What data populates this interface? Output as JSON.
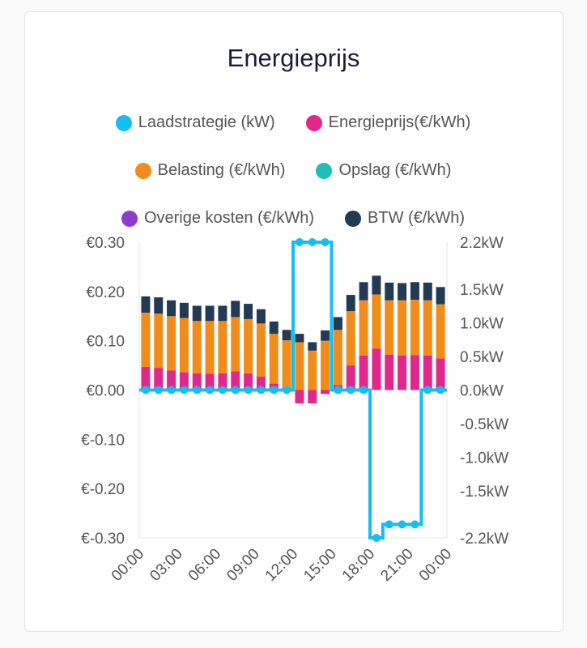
{
  "card": {
    "title": "Energieprijs"
  },
  "colors": {
    "laad": "#15bdf0",
    "energie": "#e0288c",
    "belasting": "#f08c1c",
    "opslag": "#1fbfb6",
    "overige": "#8a3dd0",
    "btw": "#233a55"
  },
  "legend": [
    {
      "key": "laad",
      "label": "Laadstrategie (kW)"
    },
    {
      "key": "energie",
      "label": "Energieprijs(€/kWh)"
    },
    {
      "key": "belasting",
      "label": "Belasting (€/kWh)"
    },
    {
      "key": "opslag",
      "label": "Opslag (€/kWh)"
    },
    {
      "key": "overige",
      "label": "Overige kosten (€/kWh)"
    },
    {
      "key": "btw",
      "label": "BTW (€/kWh)"
    }
  ],
  "chart_data": {
    "type": "bar",
    "title": "Energieprijs",
    "x": [
      0,
      1,
      2,
      3,
      4,
      5,
      6,
      7,
      8,
      9,
      10,
      11,
      12,
      13,
      14,
      15,
      16,
      17,
      18,
      19,
      20,
      21,
      22,
      23
    ],
    "x_tick_labels": [
      "00:00",
      "03:00",
      "06:00",
      "09:00",
      "12:00",
      "15:00",
      "18:00",
      "21:00",
      "00:00"
    ],
    "y_left": {
      "label": "€/kWh",
      "range": [
        -0.3,
        0.3
      ],
      "ticks": [
        "€0.30",
        "€0.20",
        "€0.10",
        "€0.00",
        "€-0.10",
        "€-0.20",
        "€-0.30"
      ]
    },
    "y_right": {
      "label": "kW",
      "range": [
        -2.2,
        2.2
      ],
      "ticks": [
        "2.2kW",
        "1.5kW",
        "1.0kW",
        "0.5kW",
        "0.0kW",
        "-0.5kW",
        "-1.0kW",
        "-1.5kW",
        "-2.2kW"
      ]
    },
    "series": [
      {
        "name": "Energieprijs(€/kWh)",
        "values": [
          0.047,
          0.045,
          0.04,
          0.036,
          0.034,
          0.033,
          0.034,
          0.038,
          0.034,
          0.027,
          0.013,
          0.004,
          -0.027,
          -0.027,
          -0.008,
          0.01,
          0.05,
          0.07,
          0.084,
          0.072,
          0.07,
          0.071,
          0.07,
          0.064
        ]
      },
      {
        "name": "Belasting (€/kWh)",
        "values": [
          0.11,
          0.11,
          0.11,
          0.11,
          0.106,
          0.107,
          0.106,
          0.11,
          0.11,
          0.108,
          0.101,
          0.097,
          0.097,
          0.08,
          0.1,
          0.112,
          0.11,
          0.112,
          0.11,
          0.11,
          0.112,
          0.112,
          0.112,
          0.11
        ]
      },
      {
        "name": "Opslag (€/kWh)",
        "values": [
          0,
          0,
          0,
          0,
          0,
          0,
          0,
          0,
          0,
          0,
          0,
          0,
          0,
          0,
          0,
          0,
          0,
          0,
          0,
          0,
          0,
          0,
          0,
          0
        ]
      },
      {
        "name": "Overige kosten (€/kWh)",
        "values": [
          0,
          0,
          0,
          0,
          0,
          0,
          0,
          0,
          0,
          0,
          0,
          0,
          0,
          0,
          0,
          0,
          0,
          0,
          0,
          0,
          0,
          0,
          0,
          0
        ]
      },
      {
        "name": "BTW (€/kWh)",
        "values": [
          0.033,
          0.033,
          0.032,
          0.031,
          0.031,
          0.031,
          0.031,
          0.033,
          0.031,
          0.029,
          0.025,
          0.021,
          0.017,
          0.017,
          0.021,
          0.026,
          0.033,
          0.037,
          0.038,
          0.036,
          0.035,
          0.036,
          0.036,
          0.035
        ]
      },
      {
        "name": "Laadstrategie (kW)",
        "axis": "right",
        "values": [
          0,
          0,
          0,
          0,
          0,
          0,
          0,
          0,
          0,
          0,
          0,
          0,
          2.2,
          2.2,
          2.2,
          0,
          0,
          0,
          -2.2,
          -2.0,
          -2.0,
          -2.0,
          0,
          0
        ]
      }
    ]
  }
}
